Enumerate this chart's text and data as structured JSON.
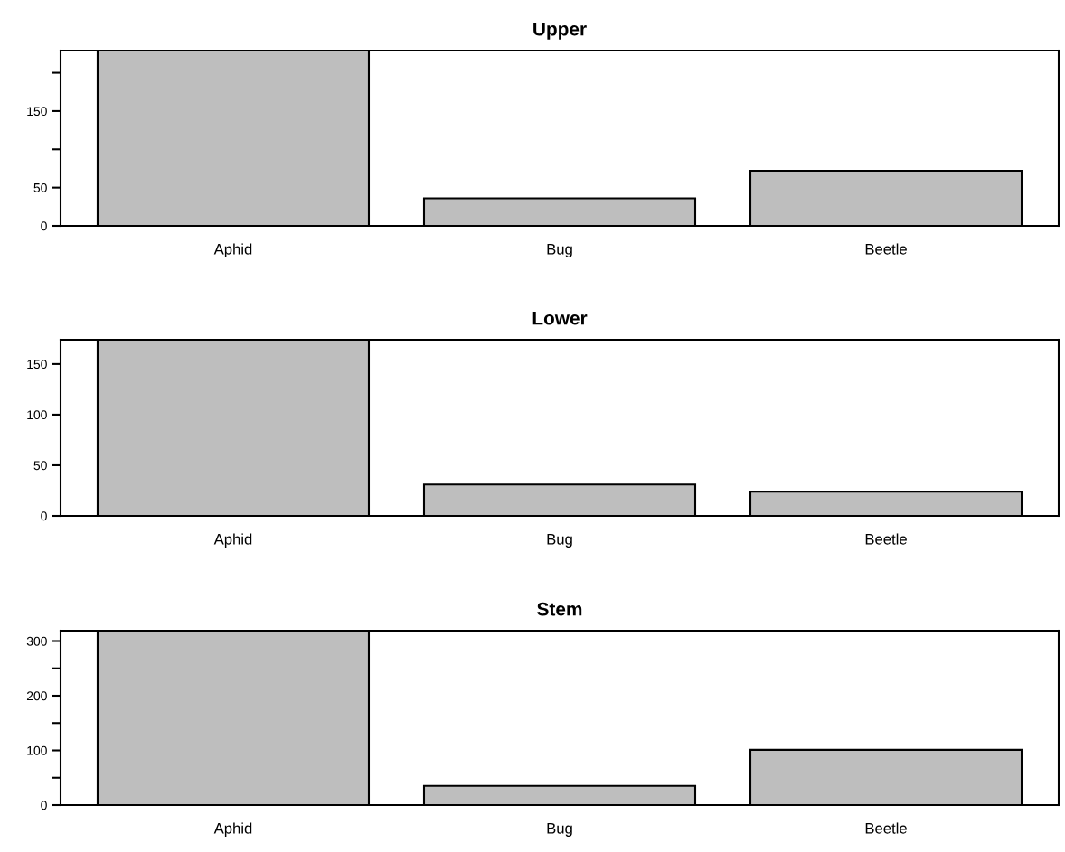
{
  "chart_data": [
    {
      "type": "bar",
      "title": "Upper",
      "categories": [
        "Aphid",
        "Bug",
        "Beetle"
      ],
      "values": [
        229,
        36,
        72
      ],
      "color": "#bebebe",
      "ylim": [
        0,
        229
      ],
      "yticks": [
        0,
        50,
        {
          "value": 100,
          "label": null
        },
        150,
        {
          "value": 200,
          "label": null
        }
      ],
      "grid": false,
      "legend": false
    },
    {
      "type": "bar",
      "title": "Lower",
      "categories": [
        "Aphid",
        "Bug",
        "Beetle"
      ],
      "values": [
        174,
        31,
        24
      ],
      "color": "#bebebe",
      "ylim": [
        0,
        174
      ],
      "yticks": [
        0,
        50,
        100,
        150
      ],
      "grid": false,
      "legend": false
    },
    {
      "type": "bar",
      "title": "Stem",
      "categories": [
        "Aphid",
        "Bug",
        "Beetle"
      ],
      "values": [
        319,
        35,
        101
      ],
      "color": "#bebebe",
      "ylim": [
        0,
        319
      ],
      "yticks": [
        0,
        {
          "value": 50,
          "label": null
        },
        100,
        {
          "value": 150,
          "label": null
        },
        200,
        {
          "value": 250,
          "label": null
        },
        300
      ],
      "grid": false,
      "legend": false
    }
  ]
}
